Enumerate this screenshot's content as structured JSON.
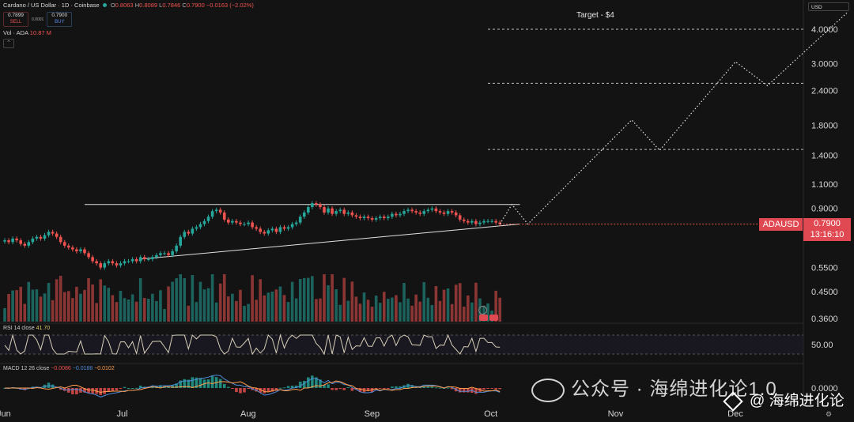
{
  "header": {
    "title": "Cardano / US Dollar · 1D · Coinbase",
    "o_label": "O",
    "o": "0.8063",
    "h_label": "H",
    "h": "0.8089",
    "l_label": "L",
    "l": "0.7846",
    "c_label": "C",
    "c": "0.7900",
    "change": "−0.0163 (−2.02%)"
  },
  "trade": {
    "sell_price": "0.7899",
    "sell_label": "SELL",
    "spread": "0.0001",
    "buy_price": "0.7900",
    "buy_label": "BUY"
  },
  "volume_label": "Vol · ADA",
  "volume_value": "10.87 M",
  "currency": "USD",
  "current_price": {
    "symbol": "ADAUSD",
    "price": "0.7900",
    "countdown": "13:16:10"
  },
  "target_text": "Target - $4",
  "rsi": {
    "label": "RSI 14 close",
    "value": "41.70"
  },
  "macd": {
    "label": "MACD 12 26 close",
    "v1": "−0.0086",
    "v2": "−0.0188",
    "v3": "−0.0102"
  },
  "watermark": "公众号 · 海绵进化论1.0",
  "brand": "@ 海绵进化论",
  "colors": {
    "up": "#26a69a",
    "down": "#ef5350",
    "background": "#131313",
    "price_tag": "#e04852"
  },
  "chart_data": {
    "type": "candlestick",
    "y_scale": "log",
    "price_ticks": [
      "4.0000",
      "3.0000",
      "2.4000",
      "1.8000",
      "1.4000",
      "1.1000",
      "0.9000",
      "0.5500",
      "0.4500",
      "0.3600"
    ],
    "rsi_ticks": [
      "50.00"
    ],
    "macd_ticks": [
      "0.0000"
    ],
    "x_labels": [
      "Jun",
      "Jul",
      "Aug",
      "Sep",
      "Oct",
      "Nov",
      "Dec"
    ],
    "start_date": "2025-06-01",
    "closes": [
      0.69,
      0.68,
      0.7,
      0.69,
      0.67,
      0.66,
      0.68,
      0.7,
      0.71,
      0.7,
      0.72,
      0.74,
      0.73,
      0.71,
      0.68,
      0.66,
      0.65,
      0.64,
      0.63,
      0.64,
      0.62,
      0.6,
      0.58,
      0.57,
      0.55,
      0.57,
      0.58,
      0.57,
      0.56,
      0.57,
      0.58,
      0.58,
      0.59,
      0.58,
      0.6,
      0.59,
      0.59,
      0.6,
      0.61,
      0.62,
      0.62,
      0.61,
      0.63,
      0.66,
      0.71,
      0.74,
      0.73,
      0.76,
      0.77,
      0.79,
      0.81,
      0.84,
      0.88,
      0.89,
      0.87,
      0.82,
      0.8,
      0.81,
      0.8,
      0.79,
      0.79,
      0.8,
      0.77,
      0.76,
      0.74,
      0.73,
      0.75,
      0.76,
      0.74,
      0.77,
      0.76,
      0.77,
      0.79,
      0.8,
      0.84,
      0.87,
      0.91,
      0.94,
      0.93,
      0.91,
      0.87,
      0.9,
      0.86,
      0.88,
      0.89,
      0.86,
      0.87,
      0.85,
      0.84,
      0.83,
      0.84,
      0.83,
      0.82,
      0.83,
      0.84,
      0.83,
      0.84,
      0.86,
      0.85,
      0.86,
      0.88,
      0.89,
      0.88,
      0.87,
      0.86,
      0.88,
      0.89,
      0.9,
      0.88,
      0.87,
      0.86,
      0.88,
      0.87,
      0.85,
      0.82,
      0.81,
      0.8,
      0.81,
      0.79,
      0.8,
      0.81,
      0.81,
      0.81,
      0.8,
      0.79
    ],
    "projection": [
      {
        "date": "2025-10-06",
        "price": 0.93
      },
      {
        "date": "2025-10-10",
        "price": 0.79
      },
      {
        "date": "2025-11-05",
        "price": 1.88
      },
      {
        "date": "2025-11-12",
        "price": 1.46
      },
      {
        "date": "2025-12-01",
        "price": 3.05
      },
      {
        "date": "2025-12-09",
        "price": 2.5
      },
      {
        "date": "2025-12-29",
        "price": 4.6
      }
    ],
    "resistance_lines": [
      4.0,
      2.55,
      1.47
    ],
    "triangle": {
      "top": {
        "from": {
          "date": "2025-06-21",
          "price": 0.93
        },
        "to": {
          "date": "2025-10-08",
          "price": 0.93
        }
      },
      "bottom": {
        "from": {
          "date": "2025-07-05",
          "price": 0.59
        },
        "to": {
          "date": "2025-10-08",
          "price": 0.79
        }
      }
    },
    "rsi_level": 50,
    "rsi_last": 41.7
  }
}
